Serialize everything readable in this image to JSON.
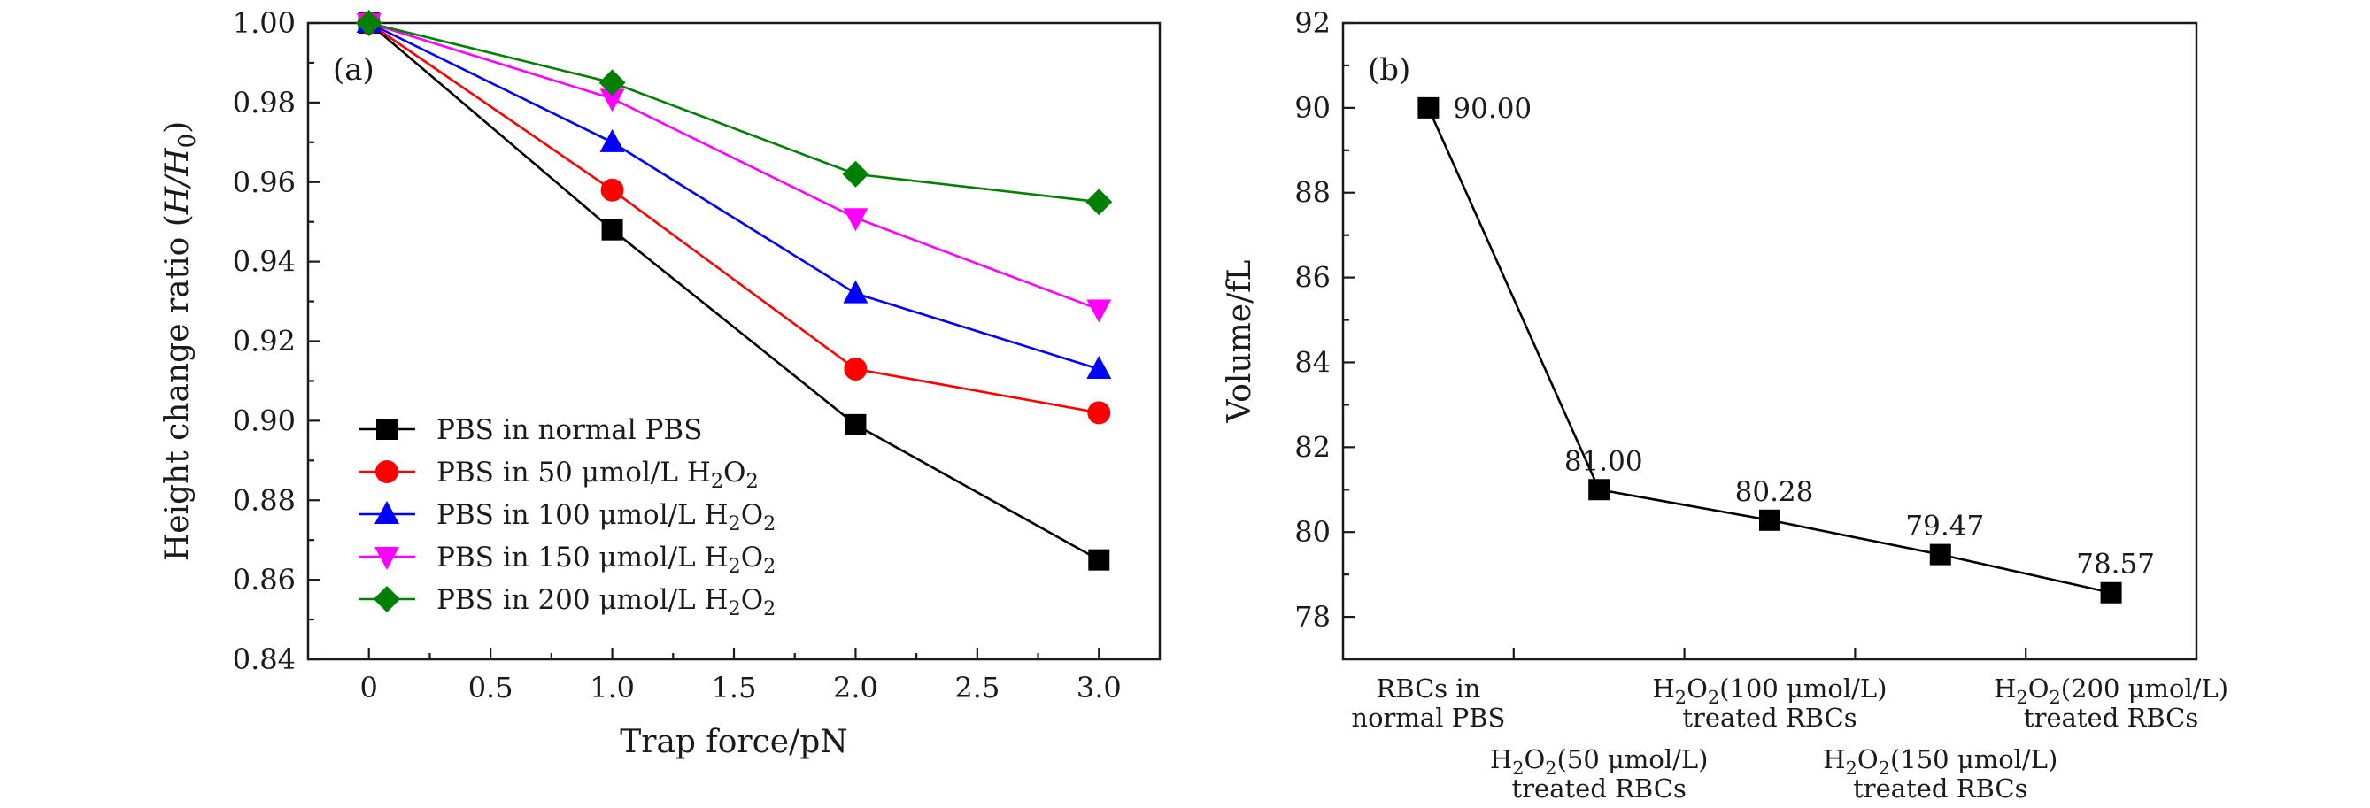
{
  "chart_data": [
    {
      "type": "line",
      "panel_label": "(a)",
      "xlabel": "Trap force/pN",
      "ylabel": "Height change ratio (H/H₀)",
      "xlim": [
        -0.25,
        3.25
      ],
      "ylim": [
        0.84,
        1.0
      ],
      "x_ticks": [
        0,
        0.5,
        1.0,
        1.5,
        2.0,
        2.5,
        3.0
      ],
      "x_tick_labels": [
        "0",
        "0.5",
        "1.0",
        "1.5",
        "2.0",
        "2.5",
        "3.0"
      ],
      "y_ticks": [
        0.84,
        0.86,
        0.88,
        0.9,
        0.92,
        0.94,
        0.96,
        0.98,
        1.0
      ],
      "y_tick_labels": [
        "0.84",
        "0.86",
        "0.88",
        "0.90",
        "0.92",
        "0.94",
        "0.96",
        "0.98",
        "1.00"
      ],
      "x": [
        0,
        1,
        2,
        3
      ],
      "legend_position": "lower-left",
      "grid": false,
      "series": [
        {
          "name": "PBS in normal PBS",
          "marker": "square",
          "color": "#000000",
          "values": [
            1.0,
            0.948,
            0.899,
            0.865
          ]
        },
        {
          "name": "PBS in 50 μmol/L H₂O₂",
          "marker": "circle",
          "color": "#ff0000",
          "values": [
            1.0,
            0.958,
            0.913,
            0.902
          ]
        },
        {
          "name": "PBS in 100 μmol/L H₂O₂",
          "marker": "triangle-up",
          "color": "#0000ff",
          "values": [
            1.0,
            0.97,
            0.932,
            0.913
          ]
        },
        {
          "name": "PBS in 150 μmol/L H₂O₂",
          "marker": "triangle-down",
          "color": "#ff00ff",
          "values": [
            1.0,
            0.981,
            0.951,
            0.928
          ]
        },
        {
          "name": "PBS in 200 μmol/L H₂O₂",
          "marker": "diamond",
          "color": "#008000",
          "values": [
            1.0,
            0.985,
            0.962,
            0.955
          ]
        }
      ]
    },
    {
      "type": "line",
      "panel_label": "(b)",
      "xlabel": "",
      "ylabel": "Volume/fL",
      "ylim": [
        77,
        92
      ],
      "y_ticks": [
        78,
        80,
        82,
        84,
        86,
        88,
        90,
        92
      ],
      "y_tick_labels": [
        "78",
        "80",
        "82",
        "84",
        "86",
        "88",
        "90",
        "92"
      ],
      "grid": false,
      "categories": [
        {
          "line1": "RBCs in",
          "line2": "normal PBS",
          "row": "upper"
        },
        {
          "line1": "H₂O₂(50 μmol/L)",
          "line2": "treated RBCs",
          "row": "lower"
        },
        {
          "line1": "H₂O₂(100 μmol/L)",
          "line2": "treated RBCs",
          "row": "upper"
        },
        {
          "line1": "H₂O₂(150 μmol/L)",
          "line2": "treated RBCs",
          "row": "lower"
        },
        {
          "line1": "H₂O₂(200 μmol/L)",
          "line2": "treated RBCs",
          "row": "upper"
        }
      ],
      "values": [
        90.0,
        81.0,
        80.28,
        79.47,
        78.57
      ],
      "data_labels": [
        "90.00",
        "81.00",
        "80.28",
        "79.47",
        "78.57"
      ],
      "marker": "square",
      "color": "#000000"
    }
  ]
}
